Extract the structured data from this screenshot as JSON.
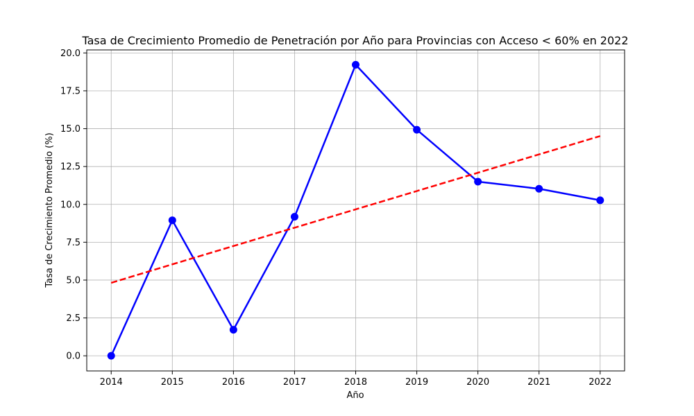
{
  "chart_data": {
    "type": "line",
    "title": "Tasa de Crecimiento Promedio de Penetración por Año para Provincias con Acceso < 60% en 2022",
    "xlabel": "Año",
    "ylabel": "Tasa de Crecimiento Promedio (%)",
    "x": [
      2014,
      2015,
      2016,
      2017,
      2018,
      2019,
      2020,
      2021,
      2022
    ],
    "x_tick_labels": [
      "2014",
      "2015",
      "2016",
      "2017",
      "2018",
      "2019",
      "2020",
      "2021",
      "2022"
    ],
    "y_tick_labels": [
      "0.0",
      "2.5",
      "5.0",
      "7.5",
      "10.0",
      "12.5",
      "15.0",
      "17.5",
      "20.0"
    ],
    "y_ticks": [
      0,
      2.5,
      5,
      7.5,
      10,
      12.5,
      15,
      17.5,
      20
    ],
    "xlim": [
      2013.6,
      2022.4
    ],
    "ylim": [
      -1.0,
      20.2
    ],
    "grid": true,
    "series": [
      {
        "values": [
          0.0,
          8.95,
          1.72,
          9.18,
          19.22,
          14.93,
          11.5,
          11.03,
          10.27
        ],
        "color": "#0000ff",
        "style": "solid",
        "marker": "circle"
      },
      {
        "values": [
          4.82,
          6.04,
          7.25,
          8.46,
          9.67,
          10.88,
          12.09,
          13.3,
          14.51
        ],
        "color": "#ff0000",
        "style": "dashed",
        "marker": "none"
      }
    ]
  }
}
